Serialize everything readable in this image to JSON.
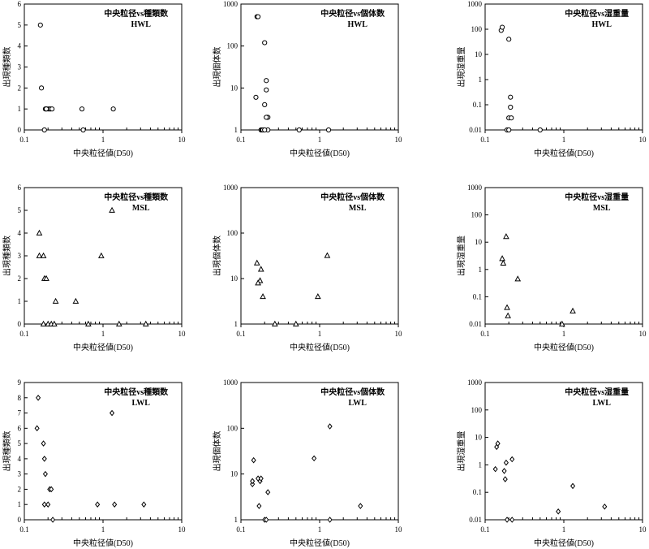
{
  "chart_data": [
    {
      "type": "scatter",
      "marker": "circle",
      "title": "中央粒径vs種類数",
      "subtitle": "HWL",
      "xlabel": "中央粒径値(D50)",
      "ylabel": "出現種類数",
      "xscale": "log",
      "yscale": "linear",
      "xlim": [
        0.1,
        10
      ],
      "ylim": [
        0,
        6
      ],
      "xticks": [
        0.1,
        1,
        10
      ],
      "xticklabels": [
        "0.1",
        "1",
        "10"
      ],
      "yticks": [
        0,
        1,
        2,
        3,
        4,
        5,
        6
      ],
      "yticklabels": [
        "0",
        "1",
        "2",
        "3",
        "4",
        "5",
        "6"
      ],
      "grid": false,
      "x": [
        0.16,
        0.165,
        0.18,
        0.185,
        0.19,
        0.2,
        0.21,
        0.215,
        0.225,
        0.19,
        0.54,
        0.56,
        1.35
      ],
      "y": [
        5,
        2,
        0,
        1,
        1,
        1,
        1,
        1,
        1,
        1,
        1,
        0,
        1
      ]
    },
    {
      "type": "scatter",
      "marker": "circle",
      "title": "中央粒径vs個体数",
      "subtitle": "HWL",
      "xlabel": "中央粒径値(D50)",
      "ylabel": "出現個体数",
      "xscale": "log",
      "yscale": "log",
      "xlim": [
        0.1,
        10
      ],
      "ylim": [
        1,
        1000
      ],
      "xticks": [
        0.1,
        1,
        10
      ],
      "xticklabels": [
        "0.1",
        "1",
        "10"
      ],
      "yticks": [
        1,
        10,
        100,
        1000
      ],
      "yticklabels": [
        "1",
        "10",
        "100",
        "1000"
      ],
      "grid": false,
      "x": [
        0.16,
        0.165,
        0.155,
        0.18,
        0.185,
        0.2,
        0.21,
        0.21,
        0.215,
        0.22,
        0.2,
        0.21,
        0.22,
        0.19,
        0.2,
        0.55,
        1.3
      ],
      "y": [
        500,
        500,
        6,
        1,
        1,
        120,
        15,
        9,
        2,
        2,
        4,
        2,
        1,
        1,
        1,
        1,
        1
      ]
    },
    {
      "type": "scatter",
      "marker": "circle",
      "title": "中央粒径vs湿重量",
      "subtitle": "HWL",
      "xlabel": "中央粒径値(D50)",
      "ylabel": "出現湿重量",
      "xscale": "log",
      "yscale": "log",
      "xlim": [
        0.1,
        10
      ],
      "ylim": [
        0.01,
        1000
      ],
      "xticks": [
        0.1,
        1,
        10
      ],
      "xticklabels": [
        "0.1",
        "1",
        "10"
      ],
      "yticks": [
        0.01,
        0.1,
        1,
        10,
        100,
        1000
      ],
      "yticklabels": [
        "0.01",
        "0.1",
        "1",
        "10",
        "100",
        "1000"
      ],
      "grid": false,
      "x": [
        0.16,
        0.165,
        0.2,
        0.21,
        0.21,
        0.2,
        0.215,
        0.19,
        0.2,
        0.5
      ],
      "y": [
        90,
        120,
        40,
        0.2,
        0.08,
        0.03,
        0.03,
        0.01,
        0.01,
        0.01
      ]
    },
    {
      "type": "scatter",
      "marker": "triangle",
      "title": "中央粒径vs種類数",
      "subtitle": "MSL",
      "xlabel": "中央粒径値(D50)",
      "ylabel": "出現種類数",
      "xscale": "log",
      "yscale": "linear",
      "xlim": [
        0.1,
        10
      ],
      "ylim": [
        0,
        6
      ],
      "xticks": [
        0.1,
        1,
        10
      ],
      "xticklabels": [
        "0.1",
        "1",
        "10"
      ],
      "yticks": [
        0,
        1,
        2,
        3,
        4,
        5,
        6
      ],
      "yticklabels": [
        "0",
        "1",
        "2",
        "3",
        "4",
        "5",
        "6"
      ],
      "grid": false,
      "x": [
        0.155,
        0.155,
        0.175,
        0.18,
        0.19,
        0.25,
        0.45,
        0.95,
        1.3,
        0.175,
        0.2,
        0.22,
        0.24,
        0.65,
        1.6,
        3.5
      ],
      "y": [
        4,
        3,
        3,
        2,
        2,
        1,
        1,
        3,
        5,
        0,
        0,
        0,
        0,
        0,
        0,
        0
      ]
    },
    {
      "type": "scatter",
      "marker": "triangle",
      "title": "中央粒径vs個体数",
      "subtitle": "MSL",
      "xlabel": "中央粒径値(D50)",
      "ylabel": "出現個体数",
      "xscale": "log",
      "yscale": "log",
      "xlim": [
        0.1,
        10
      ],
      "ylim": [
        1,
        1000
      ],
      "xticks": [
        0.1,
        1,
        10
      ],
      "xticklabels": [
        "0.1",
        "1",
        "10"
      ],
      "yticks": [
        1,
        10,
        100,
        1000
      ],
      "yticklabels": [
        "1",
        "10",
        "100",
        "1000"
      ],
      "grid": false,
      "x": [
        0.16,
        0.18,
        0.175,
        0.19,
        0.165,
        0.27,
        0.5,
        0.95,
        1.25
      ],
      "y": [
        22,
        16,
        9,
        4,
        8,
        1,
        1,
        4,
        32
      ]
    },
    {
      "type": "scatter",
      "marker": "triangle",
      "title": "中央粒径vs湿重量",
      "subtitle": "MSL",
      "xlabel": "中央粒径値(D50)",
      "ylabel": "出現湿重量",
      "xscale": "log",
      "yscale": "log",
      "xlim": [
        0.1,
        10
      ],
      "ylim": [
        0.01,
        1000
      ],
      "xticks": [
        0.1,
        1,
        10
      ],
      "xticklabels": [
        "0.1",
        "1",
        "10"
      ],
      "yticks": [
        0.01,
        0.1,
        1,
        10,
        100,
        1000
      ],
      "yticklabels": [
        "0.01",
        "0.1",
        "1",
        "10",
        "100",
        "1000"
      ],
      "grid": false,
      "x": [
        0.165,
        0.17,
        0.185,
        0.19,
        0.195,
        0.26,
        0.95,
        1.3
      ],
      "y": [
        2.5,
        1.7,
        16,
        0.04,
        0.02,
        0.45,
        0.01,
        0.03
      ]
    },
    {
      "type": "scatter",
      "marker": "diamond",
      "title": "中央粒径vs種類数",
      "subtitle": "LWL",
      "xlabel": "中央粒径値(D50)",
      "ylabel": "出現種類数",
      "xscale": "log",
      "yscale": "linear",
      "xlim": [
        0.1,
        10
      ],
      "ylim": [
        0,
        9
      ],
      "xticks": [
        0.1,
        1,
        10
      ],
      "xticklabels": [
        "0.1",
        "1",
        "10"
      ],
      "yticks": [
        0,
        1,
        2,
        3,
        4,
        5,
        6,
        7,
        8,
        9
      ],
      "yticklabels": [
        "0",
        "1",
        "2",
        "3",
        "4",
        "5",
        "6",
        "7",
        "8",
        "9"
      ],
      "grid": false,
      "x": [
        0.15,
        0.145,
        0.175,
        0.18,
        0.185,
        0.18,
        0.2,
        0.21,
        0.22,
        0.23,
        0.85,
        1.3,
        1.4,
        3.3
      ],
      "y": [
        8,
        6,
        5,
        4,
        3,
        1,
        1,
        2,
        2,
        0,
        1,
        7,
        1,
        1
      ]
    },
    {
      "type": "scatter",
      "marker": "diamond",
      "title": "中央粒径vs個体数",
      "subtitle": "LWL",
      "xlabel": "中央粒径値(D50)",
      "ylabel": "出現個体数",
      "xscale": "log",
      "yscale": "log",
      "xlim": [
        0.1,
        10
      ],
      "ylim": [
        1,
        1000
      ],
      "xticks": [
        0.1,
        1,
        10
      ],
      "xticklabels": [
        "0.1",
        "1",
        "10"
      ],
      "yticks": [
        1,
        10,
        100,
        1000
      ],
      "yticklabels": [
        "1",
        "10",
        "100",
        "1000"
      ],
      "grid": false,
      "x": [
        0.14,
        0.14,
        0.145,
        0.165,
        0.175,
        0.18,
        0.17,
        0.22,
        0.2,
        0.21,
        0.85,
        1.35,
        1.35,
        3.3
      ],
      "y": [
        6,
        7,
        20,
        8,
        7,
        8,
        2,
        4,
        1,
        1,
        22,
        110,
        1,
        2
      ]
    },
    {
      "type": "scatter",
      "marker": "diamond",
      "title": "中央粒径vs湿重量",
      "subtitle": "LWL",
      "xlabel": "中央粒径値(D50)",
      "ylabel": "出現湿重量",
      "xscale": "log",
      "yscale": "log",
      "xlim": [
        0.1,
        10
      ],
      "ylim": [
        0.01,
        1000
      ],
      "xticks": [
        0.1,
        1,
        10
      ],
      "xticklabels": [
        "0.1",
        "1",
        "10"
      ],
      "yticks": [
        0.01,
        0.1,
        1,
        10,
        100,
        1000
      ],
      "yticklabels": [
        "0.01",
        "0.1",
        "1",
        "10",
        "100",
        "1000"
      ],
      "grid": false,
      "x": [
        0.14,
        0.145,
        0.135,
        0.175,
        0.18,
        0.185,
        0.22,
        0.19,
        0.22,
        0.85,
        1.3,
        3.3
      ],
      "y": [
        4.5,
        6,
        0.7,
        0.6,
        0.3,
        1.2,
        1.6,
        0.01,
        0.01,
        0.02,
        0.17,
        0.03
      ]
    }
  ]
}
